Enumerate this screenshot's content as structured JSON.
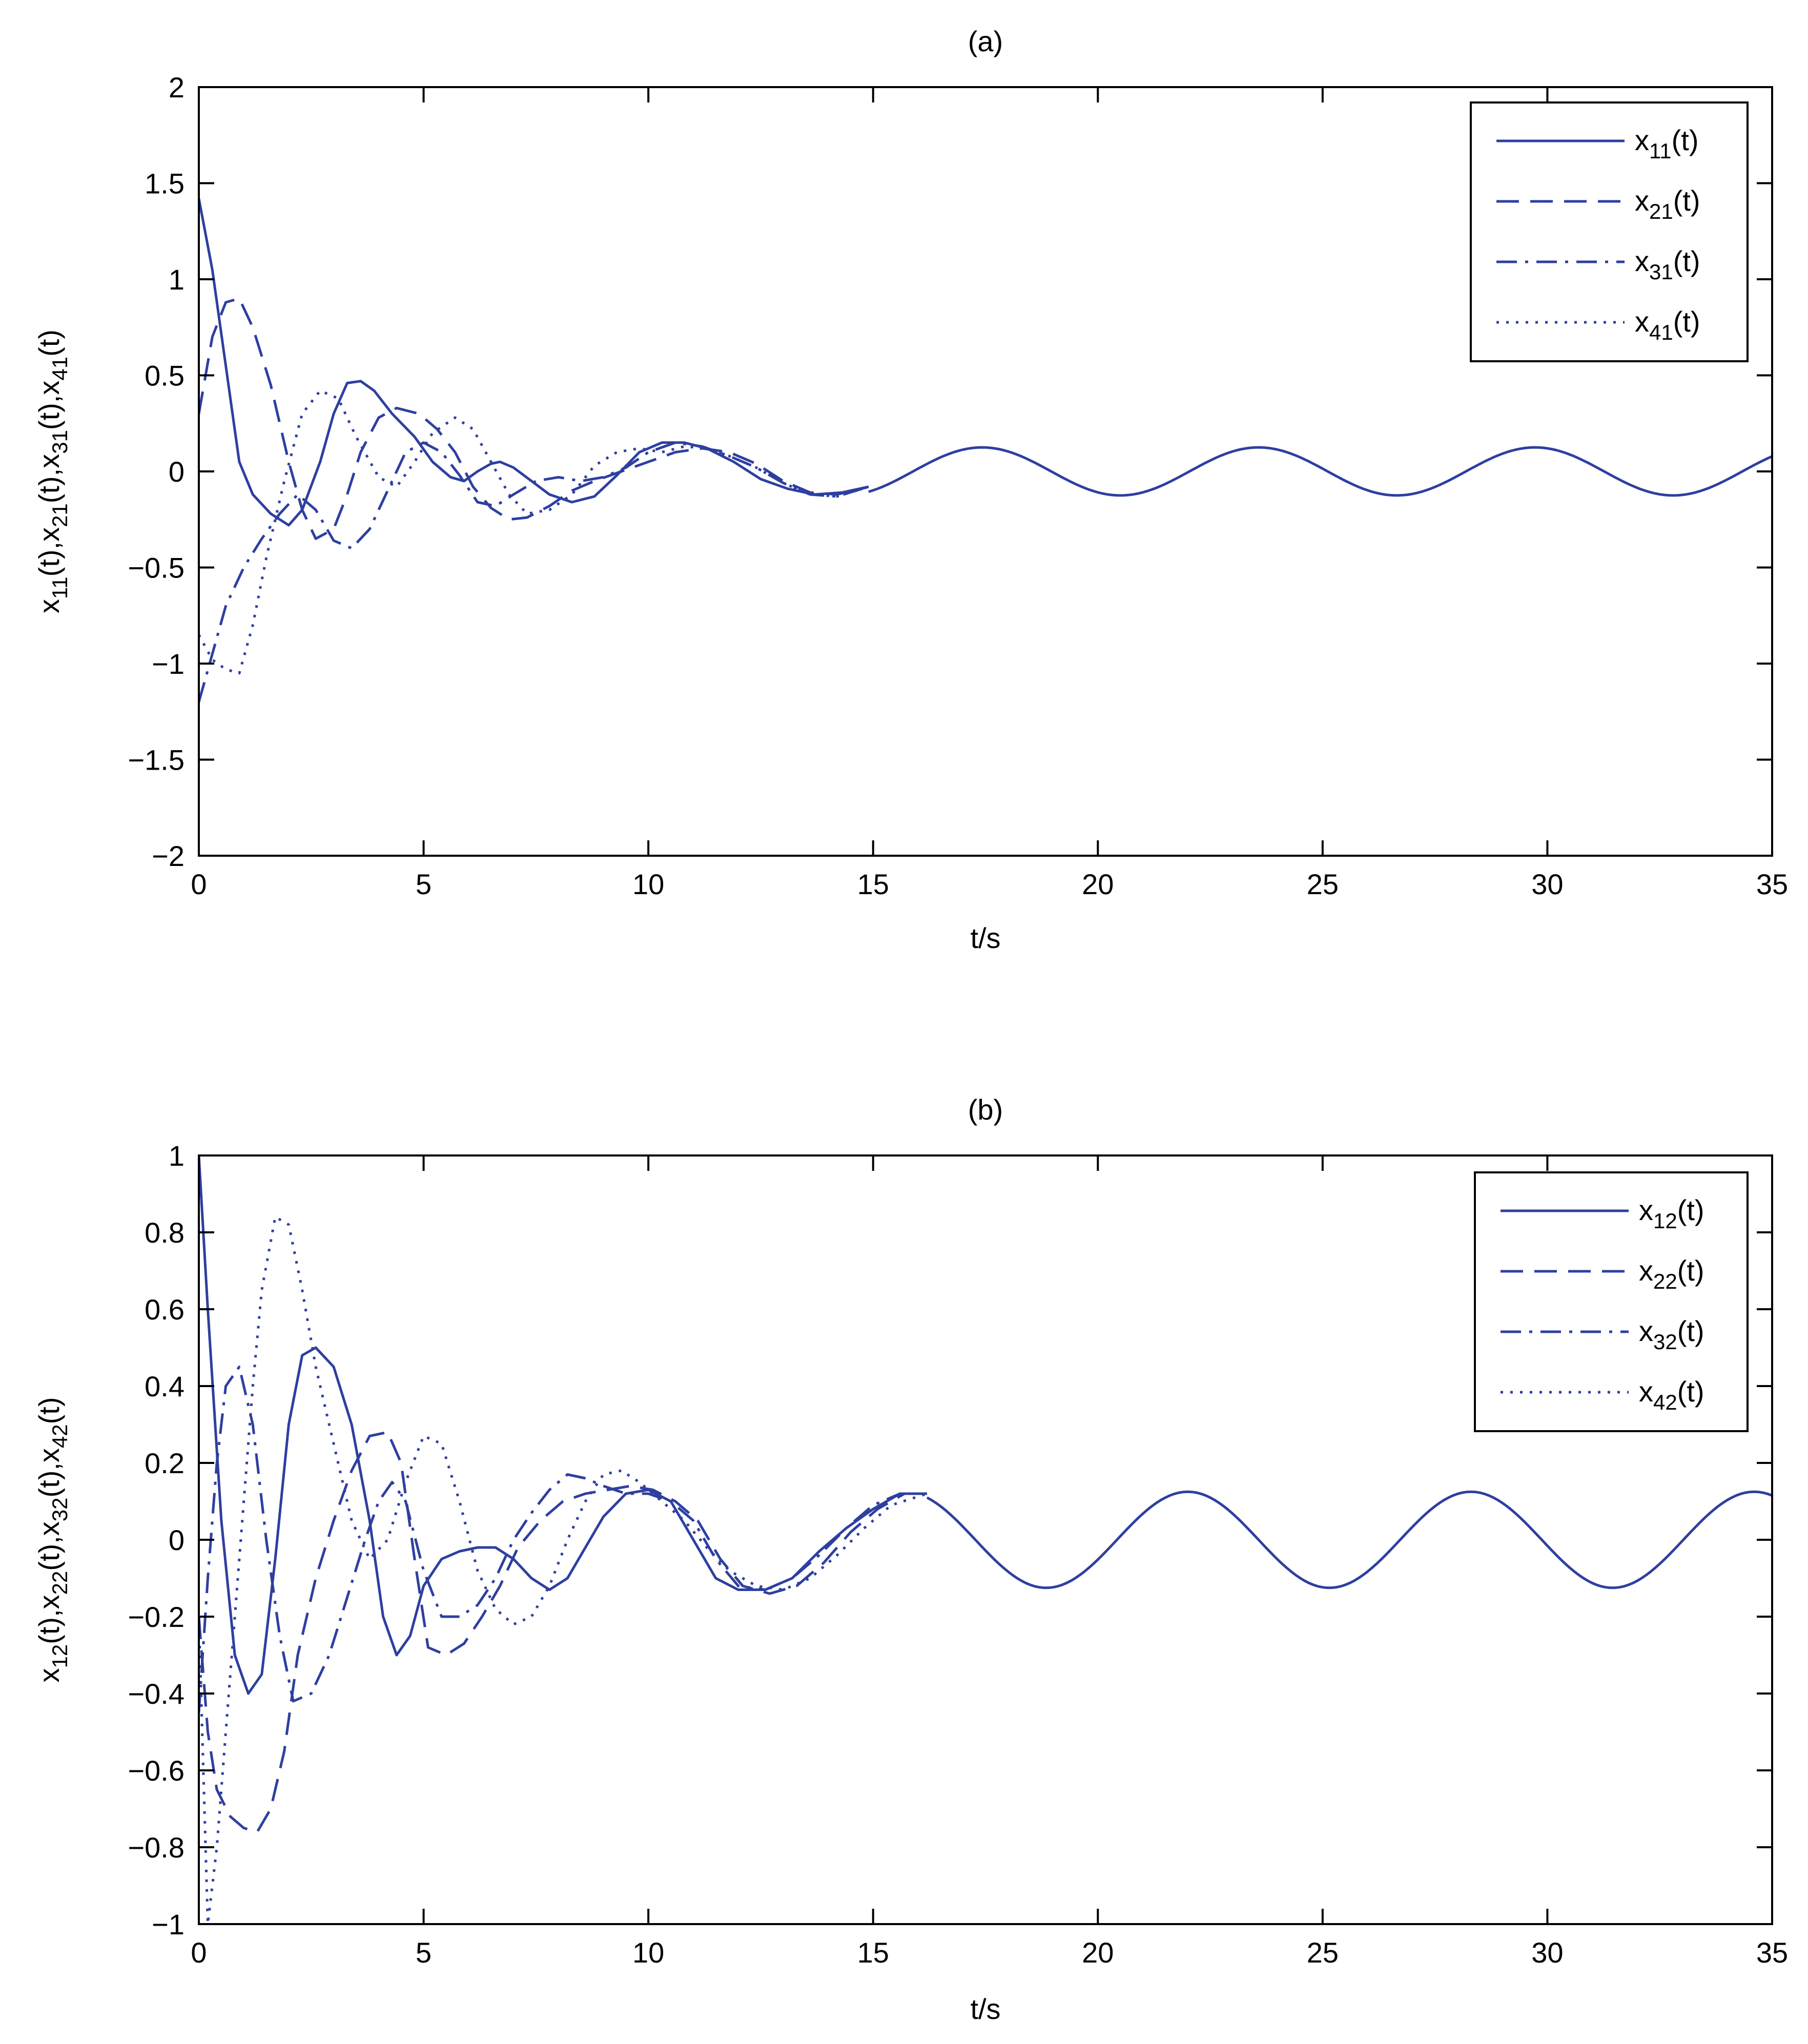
{
  "chart_data": [
    {
      "type": "line",
      "title": "(a)",
      "xlabel": "t/s",
      "ylabel": "x11(t),x21(t),x31(t),x41(t)",
      "ylabel_parts": [
        "x",
        "11",
        "(t),x",
        "21",
        "(t),x",
        "31",
        "(t),x",
        "41",
        "(t)"
      ],
      "xlim": [
        0,
        35
      ],
      "ylim": [
        -2,
        2
      ],
      "xticks": [
        0,
        5,
        10,
        15,
        20,
        25,
        30,
        35
      ],
      "xticklabels": [
        "0",
        "5",
        "10",
        "15",
        "20",
        "25",
        "30",
        "35"
      ],
      "yticks": [
        -2,
        -1.5,
        -1,
        -0.5,
        0,
        0.5,
        1,
        1.5,
        2
      ],
      "yticklabels": [
        "−2",
        "−1.5",
        "−1",
        "−0.5",
        "0",
        "0.5",
        "1",
        "1.5",
        "2"
      ],
      "grid": false,
      "legend_position": "top-right",
      "color": "#2e3fa0",
      "series": [
        {
          "name": "x11(t)",
          "sub": "11",
          "style": "solid",
          "x": [
            0,
            0.3,
            0.6,
            0.9,
            1.2,
            1.6,
            2.0,
            2.3,
            2.7,
            3.0,
            3.3,
            3.6,
            3.9,
            4.3,
            4.8,
            5.2,
            5.6,
            5.9,
            6.2,
            6.5,
            6.7,
            7.0,
            7.4,
            7.8,
            8.3,
            8.8,
            9.3,
            9.8,
            10.3,
            10.8,
            11.3,
            11.9,
            12.5,
            13.1,
            13.7,
            14.3,
            14.9
          ],
          "y": [
            1.42,
            1.05,
            0.55,
            0.05,
            -0.12,
            -0.22,
            -0.28,
            -0.2,
            0.05,
            0.3,
            0.46,
            0.47,
            0.42,
            0.3,
            0.18,
            0.05,
            -0.03,
            -0.05,
            0.0,
            0.04,
            0.05,
            0.02,
            -0.05,
            -0.12,
            -0.16,
            -0.13,
            -0.02,
            0.1,
            0.15,
            0.15,
            0.12,
            0.05,
            -0.04,
            -0.09,
            -0.12,
            -0.11,
            -0.08
          ]
        },
        {
          "name": "x21(t)",
          "sub": "21",
          "style": "dashed",
          "x": [
            0,
            0.3,
            0.6,
            0.9,
            1.2,
            1.6,
            2.0,
            2.3,
            2.6,
            3.0,
            3.3,
            3.6,
            4.0,
            4.4,
            4.9,
            5.3,
            5.7,
            6.1,
            6.5,
            6.9,
            7.3,
            7.8,
            8.3,
            8.8,
            9.4,
            10.0,
            10.6,
            11.2,
            11.8,
            12.4,
            13.0,
            13.6,
            14.2,
            14.9
          ],
          "y": [
            0.3,
            0.7,
            0.88,
            0.9,
            0.75,
            0.45,
            0.05,
            -0.2,
            -0.35,
            -0.3,
            -0.12,
            0.1,
            0.28,
            0.33,
            0.3,
            0.22,
            0.1,
            -0.08,
            -0.19,
            -0.25,
            -0.24,
            -0.18,
            -0.1,
            -0.05,
            0.0,
            0.05,
            0.1,
            0.12,
            0.1,
            0.04,
            -0.05,
            -0.11,
            -0.12,
            -0.08
          ]
        },
        {
          "name": "x31(t)",
          "sub": "31",
          "style": "dashdot",
          "x": [
            0,
            0.3,
            0.6,
            1.0,
            1.4,
            1.8,
            2.2,
            2.6,
            3.0,
            3.4,
            3.8,
            4.2,
            4.6,
            5.0,
            5.4,
            5.8,
            6.2,
            6.6,
            7.0,
            7.5,
            8.0,
            8.5,
            9.0,
            9.5,
            10.0,
            10.6,
            11.2,
            11.8,
            12.4,
            13.0,
            13.6,
            14.2,
            14.9
          ],
          "y": [
            -1.2,
            -0.95,
            -0.7,
            -0.5,
            -0.35,
            -0.22,
            -0.12,
            -0.2,
            -0.36,
            -0.4,
            -0.3,
            -0.1,
            0.1,
            0.15,
            0.1,
            -0.02,
            -0.16,
            -0.18,
            -0.12,
            -0.05,
            -0.03,
            -0.05,
            -0.03,
            0.02,
            0.1,
            0.15,
            0.13,
            0.08,
            0.02,
            -0.06,
            -0.12,
            -0.13,
            -0.08
          ]
        },
        {
          "name": "x41(t)",
          "sub": "41",
          "style": "dotted",
          "x": [
            0,
            0.3,
            0.6,
            0.9,
            1.2,
            1.5,
            1.9,
            2.3,
            2.7,
            3.1,
            3.5,
            4.0,
            4.4,
            4.8,
            5.2,
            5.7,
            6.1,
            6.5,
            6.9,
            7.3,
            7.8,
            8.3,
            8.8,
            9.3,
            9.8,
            10.3,
            10.8,
            11.3,
            11.8,
            12.4,
            13.0,
            13.6,
            14.2,
            14.9
          ],
          "y": [
            -0.85,
            -0.98,
            -1.03,
            -1.05,
            -0.8,
            -0.45,
            -0.05,
            0.3,
            0.42,
            0.38,
            0.18,
            -0.03,
            -0.08,
            0.05,
            0.2,
            0.28,
            0.22,
            0.05,
            -0.12,
            -0.22,
            -0.2,
            -0.12,
            0.03,
            0.1,
            0.12,
            0.1,
            0.13,
            0.12,
            0.08,
            0.02,
            -0.06,
            -0.12,
            -0.13,
            -0.08
          ]
        }
      ],
      "common": {
        "name": "common",
        "style": "solid",
        "amplitude": 0.125,
        "period": 6.15,
        "t_from": 14.9,
        "t_to": 35,
        "value_at_t_from": -0.08,
        "min_at": 14.35
      }
    },
    {
      "type": "line",
      "title": "(b)",
      "xlabel": "t/s",
      "ylabel": "x12(t),x22(t),x32(t),x42(t)",
      "ylabel_parts": [
        "x",
        "12",
        "(t),x",
        "22",
        "(t),x",
        "32",
        "(t),x",
        "42",
        "(t)"
      ],
      "xlim": [
        0,
        35
      ],
      "ylim": [
        -1,
        1
      ],
      "xticks": [
        0,
        5,
        10,
        15,
        20,
        25,
        30,
        35
      ],
      "xticklabels": [
        "0",
        "5",
        "10",
        "15",
        "20",
        "25",
        "30",
        "35"
      ],
      "yticks": [
        -1,
        -0.8,
        -0.6,
        -0.4,
        -0.2,
        0,
        0.2,
        0.4,
        0.6,
        0.8,
        1
      ],
      "yticklabels": [
        "−1",
        "−0.8",
        "−0.6",
        "−0.4",
        "−0.2",
        "0",
        "0.2",
        "0.4",
        "0.6",
        "0.8",
        "1"
      ],
      "grid": false,
      "legend_position": "top-right",
      "color": "#2e3fa0",
      "series": [
        {
          "name": "x12(t)",
          "sub": "12",
          "style": "solid",
          "x": [
            0,
            0.2,
            0.5,
            0.8,
            1.1,
            1.4,
            1.7,
            2.0,
            2.3,
            2.6,
            3.0,
            3.4,
            3.8,
            4.1,
            4.4,
            4.7,
            5.0,
            5.4,
            5.8,
            6.2,
            6.6,
            7.0,
            7.4,
            7.8,
            8.2,
            8.6,
            9.0,
            9.5,
            10.0,
            10.5,
            11.0,
            11.5,
            12.0,
            12.6,
            13.2,
            13.8,
            14.4,
            15.0,
            15.6,
            16.2
          ],
          "y": [
            1.0,
            0.6,
            0.05,
            -0.3,
            -0.4,
            -0.35,
            -0.05,
            0.3,
            0.48,
            0.5,
            0.45,
            0.3,
            0.05,
            -0.2,
            -0.3,
            -0.25,
            -0.12,
            -0.05,
            -0.03,
            -0.02,
            -0.02,
            -0.05,
            -0.1,
            -0.13,
            -0.1,
            -0.02,
            0.06,
            0.12,
            0.13,
            0.1,
            0.0,
            -0.1,
            -0.13,
            -0.13,
            -0.1,
            -0.03,
            0.03,
            0.08,
            0.12,
            0.12
          ]
        },
        {
          "name": "x22(t)",
          "sub": "22",
          "style": "dashed",
          "x": [
            0,
            0.2,
            0.4,
            0.7,
            1.0,
            1.3,
            1.6,
            1.9,
            2.2,
            2.6,
            3.0,
            3.4,
            3.8,
            4.2,
            4.5,
            4.8,
            5.1,
            5.5,
            5.9,
            6.3,
            6.7,
            7.1,
            7.6,
            8.1,
            8.6,
            9.1,
            9.6,
            10.1,
            10.6,
            11.1,
            11.6,
            12.1,
            12.7,
            13.3,
            13.9,
            14.5,
            15.1,
            15.7,
            16.2
          ],
          "y": [
            -0.2,
            -0.5,
            -0.65,
            -0.72,
            -0.75,
            -0.76,
            -0.7,
            -0.55,
            -0.3,
            -0.1,
            0.05,
            0.18,
            0.27,
            0.28,
            0.2,
            -0.05,
            -0.28,
            -0.3,
            -0.27,
            -0.2,
            -0.12,
            -0.02,
            0.05,
            0.1,
            0.12,
            0.13,
            0.14,
            0.13,
            0.1,
            0.05,
            -0.05,
            -0.12,
            -0.14,
            -0.12,
            -0.06,
            0.02,
            0.08,
            0.12,
            0.12
          ]
        },
        {
          "name": "x32(t)",
          "sub": "32",
          "style": "dashdot",
          "x": [
            0,
            0.2,
            0.4,
            0.6,
            0.9,
            1.2,
            1.5,
            1.8,
            2.1,
            2.5,
            2.9,
            3.3,
            3.7,
            4.0,
            4.3,
            4.6,
            5.0,
            5.4,
            5.8,
            6.2,
            6.6,
            7.0,
            7.4,
            7.8,
            8.2,
            8.6,
            9.0,
            9.5,
            10.0,
            10.5,
            11.0,
            11.5,
            12.0,
            12.6,
            13.2,
            13.8,
            14.4,
            15.0,
            15.6,
            16.2
          ],
          "y": [
            -0.45,
            -0.1,
            0.2,
            0.4,
            0.45,
            0.3,
            0.0,
            -0.25,
            -0.42,
            -0.4,
            -0.3,
            -0.15,
            0.0,
            0.1,
            0.15,
            0.1,
            -0.08,
            -0.2,
            -0.2,
            -0.17,
            -0.1,
            0.0,
            0.07,
            0.13,
            0.17,
            0.16,
            0.14,
            0.12,
            0.12,
            0.1,
            0.05,
            -0.05,
            -0.12,
            -0.13,
            -0.1,
            -0.04,
            0.03,
            0.09,
            0.12,
            0.12
          ]
        },
        {
          "name": "x42(t)",
          "sub": "42",
          "style": "dotted",
          "x": [
            0,
            0.2,
            0.4,
            0.6,
            0.8,
            1.0,
            1.2,
            1.4,
            1.7,
            2.0,
            2.3,
            2.6,
            3.0,
            3.4,
            3.8,
            4.2,
            4.6,
            5.0,
            5.4,
            5.8,
            6.2,
            6.6,
            7.0,
            7.4,
            7.8,
            8.2,
            8.6,
            9.0,
            9.4,
            9.8,
            10.3,
            10.8,
            11.3,
            11.8,
            12.4,
            13.0,
            13.6,
            14.2,
            14.8,
            15.4,
            16.2
          ],
          "y": [
            -0.2,
            -1.0,
            -0.8,
            -0.5,
            -0.2,
            0.1,
            0.4,
            0.65,
            0.84,
            0.82,
            0.65,
            0.45,
            0.25,
            0.05,
            -0.05,
            0.0,
            0.15,
            0.27,
            0.25,
            0.1,
            -0.08,
            -0.18,
            -0.22,
            -0.2,
            -0.12,
            0.0,
            0.1,
            0.17,
            0.18,
            0.15,
            0.1,
            0.05,
            -0.02,
            -0.08,
            -0.12,
            -0.13,
            -0.1,
            -0.04,
            0.03,
            0.09,
            0.12
          ]
        }
      ],
      "common": {
        "name": "common",
        "style": "solid",
        "amplitude": 0.125,
        "period": 6.3,
        "t_from": 16.2,
        "t_to": 35,
        "value_at_t_from": 0.12,
        "min_at": 18.85
      }
    }
  ]
}
